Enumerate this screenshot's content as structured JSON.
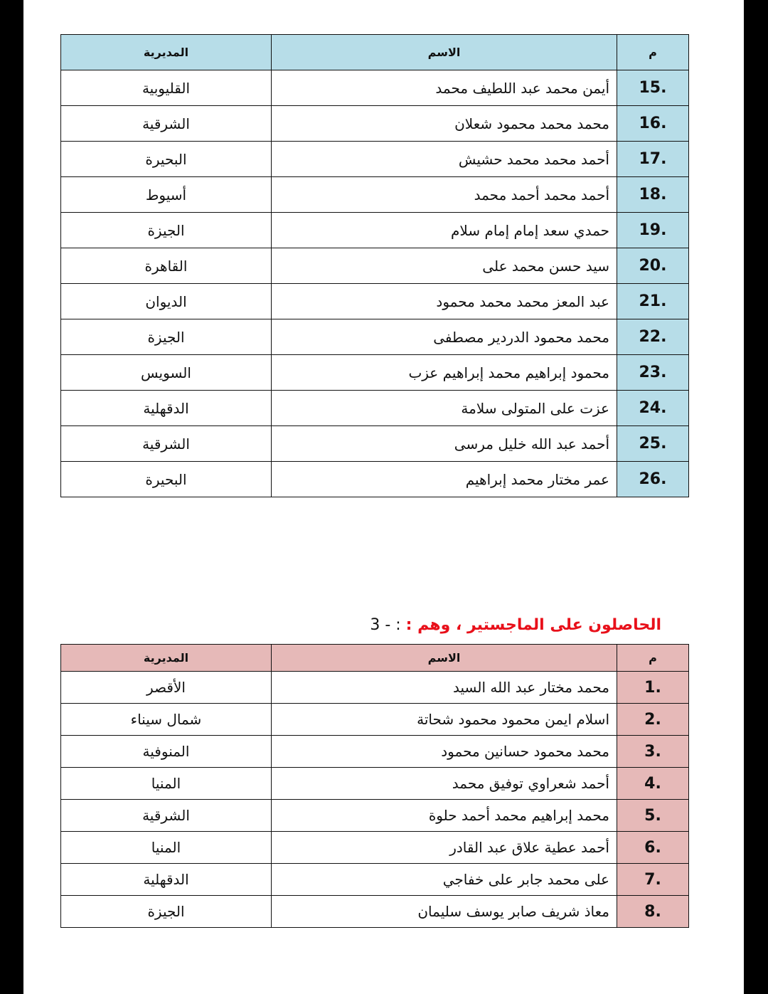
{
  "table1": {
    "headers": {
      "number": "م",
      "name": "الاسم",
      "directorate": "المديرية"
    },
    "rows": [
      {
        "number": "15.",
        "name": "أيمن محمد عبد اللطيف محمد",
        "directorate": "القليوبية"
      },
      {
        "number": "16.",
        "name": "محمد محمد محمود شعلان",
        "directorate": "الشرقية"
      },
      {
        "number": "17.",
        "name": "أحمد محمد محمد حشيش",
        "directorate": "البحيرة"
      },
      {
        "number": "18.",
        "name": "أحمد محمد أحمد محمد",
        "directorate": "أسيوط"
      },
      {
        "number": "19.",
        "name": "حمدي سعد إمام إمام سلام",
        "directorate": "الجيزة"
      },
      {
        "number": "20.",
        "name": "سيد حسن محمد على",
        "directorate": "القاهرة"
      },
      {
        "number": "21.",
        "name": "عبد المعز محمد محمد محمود",
        "directorate": "الديوان"
      },
      {
        "number": "22.",
        "name": "محمد محمود الدردير مصطفى",
        "directorate": "الجيزة"
      },
      {
        "number": "23.",
        "name": "محمود إبراهيم محمد إبراهيم عزب",
        "directorate": "السويس"
      },
      {
        "number": "24.",
        "name": "عزت على المتولى سلامة",
        "directorate": "الدقهلية"
      },
      {
        "number": "25.",
        "name": "أحمد عبد الله خليل مرسى",
        "directorate": "الشرقية"
      },
      {
        "number": "26.",
        "name": "عمر مختار محمد إبراهيم",
        "directorate": "البحيرة"
      }
    ]
  },
  "section3": {
    "number": "3 - :",
    "title": "الحاصلون على الماجستير ، وهم :"
  },
  "table2": {
    "headers": {
      "number": "م",
      "name": "الاسم",
      "directorate": "المديرية"
    },
    "rows": [
      {
        "number": "1.",
        "name": "محمد مختار عبد الله السيد",
        "directorate": "الأقصر"
      },
      {
        "number": "2.",
        "name": "اسلام ايمن محمود محمود شحاتة",
        "directorate": "شمال سيناء"
      },
      {
        "number": "3.",
        "name": "محمد محمود حسانين محمود",
        "directorate": "المنوفية"
      },
      {
        "number": "4.",
        "name": "أحمد شعراوي توفيق محمد",
        "directorate": "المنيا"
      },
      {
        "number": "5.",
        "name": "محمد إبراهيم محمد أحمد حلوة",
        "directorate": "الشرقية"
      },
      {
        "number": "6.",
        "name": "أحمد عطية علاق عبد القادر",
        "directorate": "المنيا"
      },
      {
        "number": "7.",
        "name": "على محمد جابر على خفاجي",
        "directorate": "الدقهلية"
      },
      {
        "number": "8.",
        "name": "معاذ شريف صابر يوسف سليمان",
        "directorate": "الجيزة"
      }
    ]
  },
  "colors": {
    "table1_header": "#b7dde8",
    "table2_header": "#e6b9b8",
    "section_title": "#e8101a"
  }
}
